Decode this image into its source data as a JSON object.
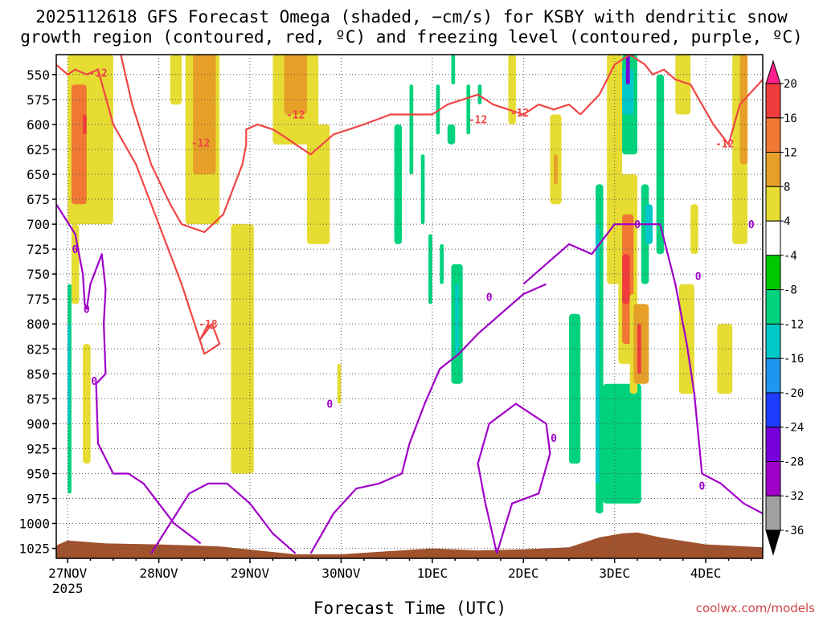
{
  "chart_data": {
    "type": "heatmap",
    "title_line1": "2025112618 GFS Forecast Omega (shaded, −cm/s) for KSBY with dendritic snow",
    "title_line2": "growth region (contoured, red, ºC) and freezing level (contoured, purple, ºC)",
    "xlabel": "Forecast Time (UTC)",
    "credit": "coolwx.com/models",
    "x_ticks": [
      "27NOV",
      "28NOV",
      "29NOV",
      "30NOV",
      "1DEC",
      "2DEC",
      "3DEC",
      "4DEC"
    ],
    "x_year": "2025",
    "x_range_hours": [
      -3,
      183
    ],
    "y_ticks": [
      550,
      575,
      600,
      625,
      650,
      675,
      700,
      725,
      750,
      775,
      800,
      825,
      850,
      875,
      900,
      925,
      950,
      975,
      1000,
      1025
    ],
    "y_range_hpa": [
      530,
      1035
    ],
    "colorbar": {
      "labels": [
        "20",
        "16",
        "12",
        "8",
        "4",
        "-4",
        "-8",
        "-12",
        "-16",
        "-20",
        "-24",
        "-28",
        "-32",
        "-36"
      ],
      "colors": [
        "#ff1e8c",
        "#f03c3c",
        "#f07832",
        "#e6a028",
        "#e6dc32",
        "#ffffff",
        "#00c800",
        "#00d27d",
        "#00c8c8",
        "#1e96f0",
        "#1e3cff",
        "#7800dc",
        "#a000c8",
        "#a0a0a0",
        "#000000"
      ]
    },
    "dgz_contour_labels": [
      "-12",
      "-12",
      "-18",
      "-12",
      "-12",
      "-12",
      "-12"
    ],
    "freezing_contour_labels": [
      "0",
      "0",
      "0",
      "0",
      "0",
      "0",
      "0",
      "0",
      "0",
      "0"
    ],
    "omega_regions": [
      {
        "t": [
          0,
          12
        ],
        "p": [
          530,
          700
        ],
        "value": 6
      },
      {
        "t": [
          1,
          5
        ],
        "p": [
          560,
          680
        ],
        "value": 12
      },
      {
        "t": [
          4,
          5
        ],
        "p": [
          590,
          610
        ],
        "value": 18
      },
      {
        "t": [
          1,
          3
        ],
        "p": [
          700,
          780
        ],
        "value": 6
      },
      {
        "t": [
          0,
          1
        ],
        "p": [
          760,
          970
        ],
        "value": -8
      },
      {
        "t": [
          0,
          0.6
        ],
        "p": [
          800,
          900
        ],
        "value": -14
      },
      {
        "t": [
          4,
          6
        ],
        "p": [
          820,
          940
        ],
        "value": 6
      },
      {
        "t": [
          27,
          30
        ],
        "p": [
          530,
          580
        ],
        "value": 6
      },
      {
        "t": [
          31,
          40
        ],
        "p": [
          530,
          700
        ],
        "value": 6
      },
      {
        "t": [
          33,
          39
        ],
        "p": [
          530,
          650
        ],
        "value": 10
      },
      {
        "t": [
          43,
          49
        ],
        "p": [
          700,
          950
        ],
        "value": 6
      },
      {
        "t": [
          47,
          48
        ],
        "p": [
          800,
          870
        ],
        "value": 6
      },
      {
        "t": [
          54,
          66
        ],
        "p": [
          530,
          620
        ],
        "value": 6
      },
      {
        "t": [
          57,
          63
        ],
        "p": [
          530,
          590
        ],
        "value": 9
      },
      {
        "t": [
          63,
          69
        ],
        "p": [
          600,
          720
        ],
        "value": 6
      },
      {
        "t": [
          71,
          72
        ],
        "p": [
          840,
          880
        ],
        "value": 6
      },
      {
        "t": [
          86,
          88
        ],
        "p": [
          600,
          720
        ],
        "value": -8
      },
      {
        "t": [
          90,
          91
        ],
        "p": [
          560,
          650
        ],
        "value": -8
      },
      {
        "t": [
          93,
          94
        ],
        "p": [
          630,
          700
        ],
        "value": -8
      },
      {
        "t": [
          95,
          96
        ],
        "p": [
          710,
          780
        ],
        "value": -8
      },
      {
        "t": [
          97,
          98
        ],
        "p": [
          560,
          610
        ],
        "value": -8
      },
      {
        "t": [
          98,
          99
        ],
        "p": [
          720,
          760
        ],
        "value": -8
      },
      {
        "t": [
          100,
          102
        ],
        "p": [
          600,
          620
        ],
        "value": -8
      },
      {
        "t": [
          101,
          102
        ],
        "p": [
          530,
          560
        ],
        "value": -8
      },
      {
        "t": [
          105,
          106
        ],
        "p": [
          560,
          610
        ],
        "value": -8
      },
      {
        "t": [
          108,
          109
        ],
        "p": [
          560,
          580
        ],
        "value": -8
      },
      {
        "t": [
          101,
          104
        ],
        "p": [
          740,
          860
        ],
        "value": -8
      },
      {
        "t": [
          102,
          103
        ],
        "p": [
          760,
          830
        ],
        "value": -14
      },
      {
        "t": [
          116,
          118
        ],
        "p": [
          530,
          600
        ],
        "value": 6
      },
      {
        "t": [
          127,
          130
        ],
        "p": [
          590,
          680
        ],
        "value": 6
      },
      {
        "t": [
          128,
          129
        ],
        "p": [
          630,
          660
        ],
        "value": 10
      },
      {
        "t": [
          132,
          135
        ],
        "p": [
          790,
          940
        ],
        "value": -8
      },
      {
        "t": [
          139,
          141
        ],
        "p": [
          660,
          990
        ],
        "value": -8
      },
      {
        "t": [
          139,
          140
        ],
        "p": [
          700,
          960
        ],
        "value": -14
      },
      {
        "t": [
          141,
          151
        ],
        "p": [
          860,
          980
        ],
        "value": -8
      },
      {
        "t": [
          142,
          146
        ],
        "p": [
          530,
          760
        ],
        "value": 6
      },
      {
        "t": [
          146,
          150
        ],
        "p": [
          530,
          630
        ],
        "value": -8
      },
      {
        "t": [
          146,
          149
        ],
        "p": [
          545,
          590
        ],
        "value": -13
      },
      {
        "t": [
          147,
          148
        ],
        "p": [
          530,
          560
        ],
        "value": -25
      },
      {
        "t": [
          145,
          150
        ],
        "p": [
          650,
          840
        ],
        "value": 6
      },
      {
        "t": [
          146,
          149
        ],
        "p": [
          690,
          820
        ],
        "value": 12
      },
      {
        "t": [
          146,
          148
        ],
        "p": [
          730,
          780
        ],
        "value": 18
      },
      {
        "t": [
          148,
          150
        ],
        "p": [
          770,
          870
        ],
        "value": 6
      },
      {
        "t": [
          149,
          153
        ],
        "p": [
          780,
          860
        ],
        "value": 10
      },
      {
        "t": [
          150,
          151
        ],
        "p": [
          800,
          850
        ],
        "value": 18
      },
      {
        "t": [
          151,
          153
        ],
        "p": [
          660,
          760
        ],
        "value": -8
      },
      {
        "t": [
          152,
          154
        ],
        "p": [
          680,
          720
        ],
        "value": -14
      },
      {
        "t": [
          155,
          157
        ],
        "p": [
          550,
          730
        ],
        "value": -8
      },
      {
        "t": [
          160,
          164
        ],
        "p": [
          530,
          590
        ],
        "value": 6
      },
      {
        "t": [
          161,
          165
        ],
        "p": [
          760,
          870
        ],
        "value": 6
      },
      {
        "t": [
          164,
          166
        ],
        "p": [
          680,
          730
        ],
        "value": 6
      },
      {
        "t": [
          171,
          175
        ],
        "p": [
          800,
          870
        ],
        "value": 6
      },
      {
        "t": [
          175,
          179
        ],
        "p": [
          530,
          720
        ],
        "value": 6
      },
      {
        "t": [
          177,
          179
        ],
        "p": [
          530,
          640
        ],
        "value": 10
      }
    ],
    "dgz_lines": [
      {
        "t": [
          -3,
          0,
          2,
          5,
          8,
          12,
          18,
          24,
          30,
          36,
          40,
          38,
          36,
          35,
          37,
          38
        ],
        "p": [
          540,
          550,
          545,
          550,
          545,
          600,
          640,
          700,
          760,
          830,
          820,
          800,
          810,
          815,
          800,
          805
        ]
      },
      {
        "t": [
          14,
          17,
          22,
          27,
          30,
          36,
          41,
          44,
          46,
          47,
          47,
          50,
          54,
          57,
          60
        ],
        "p": [
          530,
          580,
          640,
          680,
          700,
          708,
          690,
          660,
          640,
          620,
          605,
          600,
          605,
          612,
          620
        ]
      },
      {
        "t": [
          60,
          64,
          70,
          78,
          85,
          90,
          96,
          100,
          104,
          108,
          112,
          116,
          120,
          124,
          128,
          132,
          135
        ],
        "p": [
          620,
          630,
          610,
          600,
          590,
          590,
          590,
          580,
          575,
          570,
          580,
          585,
          590,
          580,
          585,
          580,
          590
        ]
      },
      {
        "t": [
          135,
          140,
          144,
          148,
          152,
          154,
          157,
          160,
          164,
          167,
          170,
          174,
          177,
          183
        ],
        "p": [
          590,
          570,
          540,
          530,
          540,
          550,
          545,
          555,
          560,
          580,
          600,
          620,
          580,
          555
        ]
      }
    ],
    "frz_lines": [
      {
        "t": [
          -3,
          2,
          4,
          4.5,
          5,
          6,
          8,
          9,
          10,
          9.5,
          10,
          7.5,
          8,
          12,
          16,
          20,
          24,
          28,
          35
        ],
        "p": [
          680,
          710,
          750,
          780,
          785,
          760,
          740,
          730,
          765,
          800,
          850,
          860,
          920,
          950,
          950,
          960,
          980,
          1000,
          1020
        ]
      },
      {
        "t": [
          22,
          27,
          32,
          37,
          42,
          48,
          54,
          60
        ],
        "p": [
          1030,
          1000,
          970,
          960,
          960,
          980,
          1010,
          1030
        ]
      },
      {
        "t": [
          64,
          70,
          76,
          82,
          88,
          90,
          94,
          98,
          103,
          108,
          114,
          120,
          126
        ],
        "p": [
          1030,
          990,
          965,
          960,
          950,
          920,
          880,
          845,
          830,
          810,
          790,
          770,
          760
        ]
      },
      {
        "t": [
          120,
          126,
          132,
          138,
          144,
          150,
          156,
          160,
          163,
          165,
          167,
          172,
          178,
          183
        ],
        "p": [
          760,
          740,
          720,
          730,
          700,
          700,
          700,
          760,
          820,
          870,
          950,
          960,
          980,
          990
        ]
      },
      {
        "t": [
          113,
          110,
          108,
          111,
          118,
          126,
          127,
          124,
          117,
          113
        ],
        "p": [
          1030,
          980,
          940,
          900,
          880,
          900,
          930,
          970,
          980,
          1030
        ]
      }
    ]
  }
}
